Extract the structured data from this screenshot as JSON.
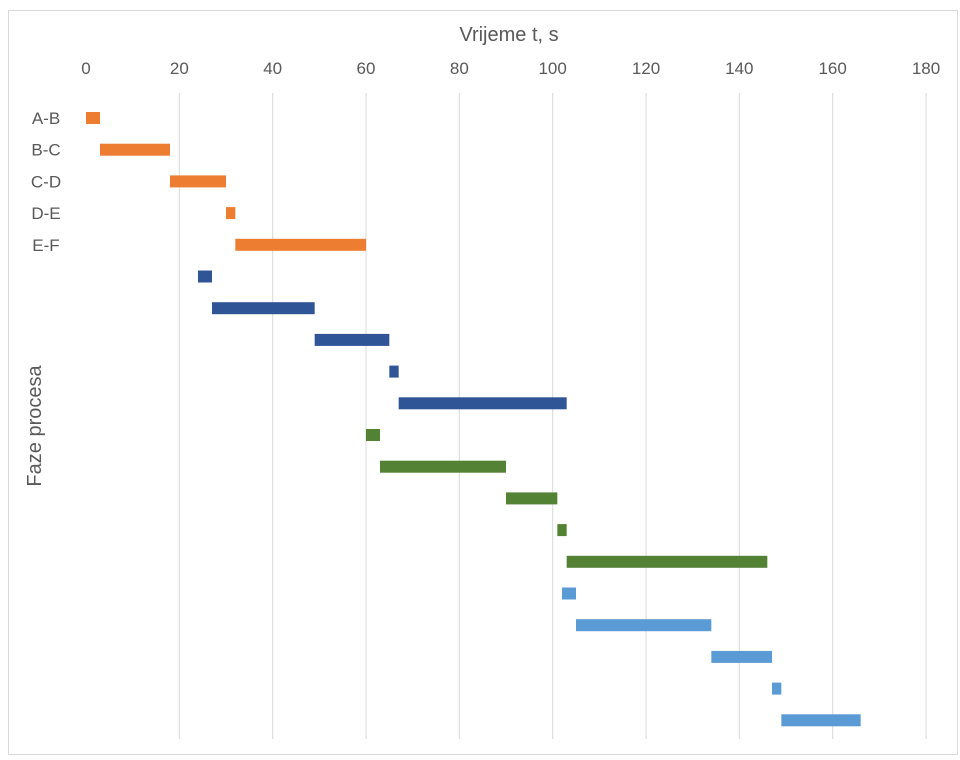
{
  "chart_data": {
    "type": "bar",
    "orientation": "horizontal-gantt",
    "xlabel": "Vrijeme t, s",
    "ylabel": "Faze procesa",
    "xlim": [
      0,
      180
    ],
    "xticks": [
      0,
      20,
      40,
      60,
      80,
      100,
      120,
      140,
      160,
      180
    ],
    "x_axis_position": "top",
    "grid": "vertical",
    "legend": "none",
    "categories": [
      "A-B",
      "B-C",
      "C-D",
      "D-E",
      "E-F",
      "",
      "",
      "",
      "",
      "",
      "",
      "",
      "",
      "",
      "",
      "",
      "",
      "",
      "",
      ""
    ],
    "series": [
      {
        "color": "#ed7d31",
        "segments": [
          {
            "row": 0,
            "start": 0,
            "end": 3
          },
          {
            "row": 1,
            "start": 3,
            "end": 18
          },
          {
            "row": 2,
            "start": 18,
            "end": 30
          },
          {
            "row": 3,
            "start": 30,
            "end": 32
          },
          {
            "row": 4,
            "start": 32,
            "end": 60
          }
        ]
      },
      {
        "color": "#2f5597",
        "segments": [
          {
            "row": 5,
            "start": 24,
            "end": 27
          },
          {
            "row": 6,
            "start": 27,
            "end": 49
          },
          {
            "row": 7,
            "start": 49,
            "end": 65
          },
          {
            "row": 8,
            "start": 65,
            "end": 67
          },
          {
            "row": 9,
            "start": 67,
            "end": 103
          }
        ]
      },
      {
        "color": "#548235",
        "segments": [
          {
            "row": 10,
            "start": 60,
            "end": 63
          },
          {
            "row": 11,
            "start": 63,
            "end": 90
          },
          {
            "row": 12,
            "start": 90,
            "end": 101
          },
          {
            "row": 13,
            "start": 101,
            "end": 103
          },
          {
            "row": 14,
            "start": 103,
            "end": 146
          }
        ]
      },
      {
        "color": "#5b9bd5",
        "segments": [
          {
            "row": 15,
            "start": 102,
            "end": 105
          },
          {
            "row": 16,
            "start": 105,
            "end": 134
          },
          {
            "row": 17,
            "start": 134,
            "end": 147
          },
          {
            "row": 18,
            "start": 147,
            "end": 149
          },
          {
            "row": 19,
            "start": 149,
            "end": 166
          }
        ]
      }
    ]
  }
}
